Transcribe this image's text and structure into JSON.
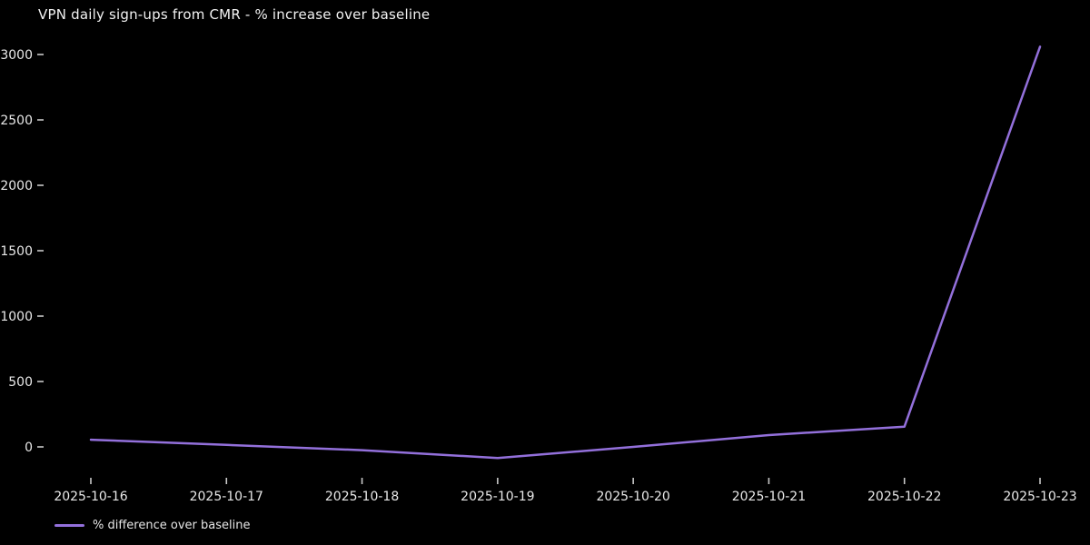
{
  "title": "VPN daily sign-ups from CMR - % increase over baseline",
  "chart_data": {
    "type": "line",
    "x": [
      "2025-10-16",
      "2025-10-17",
      "2025-10-18",
      "2025-10-19",
      "2025-10-20",
      "2025-10-21",
      "2025-10-22",
      "2025-10-23"
    ],
    "series": [
      {
        "name": "% difference over baseline",
        "values": [
          55,
          15,
          -25,
          -85,
          0,
          90,
          155,
          3060
        ]
      }
    ],
    "title": "VPN daily sign-ups from CMR - % increase over baseline",
    "xlabel": "",
    "ylabel": "",
    "y_ticks": [
      0,
      500,
      1000,
      1500,
      2000,
      2500,
      3000
    ],
    "ylim": [
      -150,
      3150
    ],
    "grid": false,
    "legend_position": "lower-left",
    "colors": {
      "background": "#000000",
      "line": "#9370db",
      "text": "#e8e8e8",
      "tick": "#c9c9c9",
      "title": "#f2f2f2"
    }
  },
  "legend": {
    "items": [
      {
        "label": "% difference over baseline",
        "color": "#9370db"
      }
    ]
  }
}
